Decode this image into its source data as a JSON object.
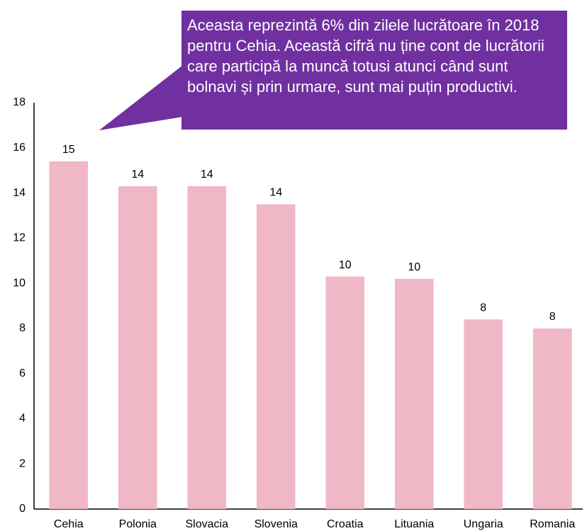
{
  "chart_data": {
    "type": "bar",
    "annotation": "Aceasta reprezintă 6% din zilele lucrătoare în 2018 pentru Cehia. Această cifră nu ține cont de lucrătorii care participă la muncă totusi atunci când sunt bolnavi și prin urmare, sunt mai puțin productivi.",
    "categories": [
      "Cehia",
      "Polonia",
      "Slovacia",
      "Slovenia",
      "Croatia",
      "Lituania",
      "Ungaria",
      "Romania"
    ],
    "values": [
      15.4,
      14.3,
      14.3,
      13.5,
      10.3,
      10.2,
      8.4,
      8.0
    ],
    "value_labels": [
      "15",
      "14",
      "14",
      "14",
      "10",
      "10",
      "8",
      "8"
    ],
    "color": "#f0b8c6",
    "annotation_color": "#7030a0",
    "ylim": [
      0,
      18
    ],
    "yticks": [
      0,
      2,
      4,
      6,
      8,
      10,
      12,
      14,
      16,
      18
    ],
    "grid": false
  }
}
